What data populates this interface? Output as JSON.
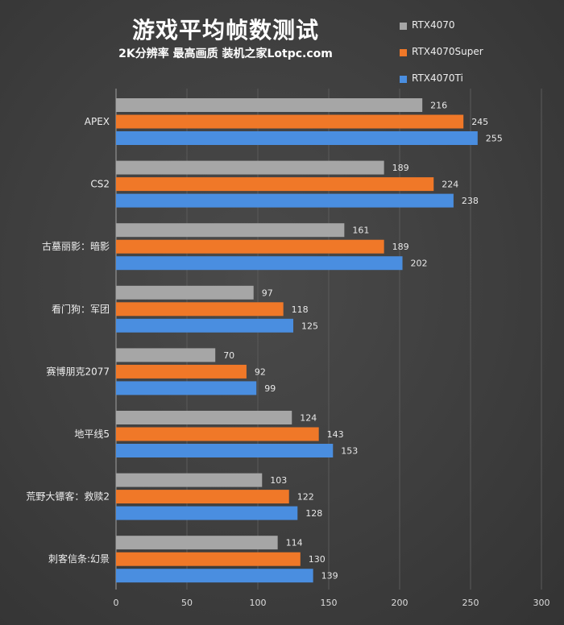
{
  "title": "游戏平均帧数测试",
  "subtitle": "2K分辨率  最高画质  装机之家Lotpc.com",
  "chart_data": {
    "type": "bar",
    "orientation": "horizontal",
    "categories": [
      "APEX",
      "CS2",
      "古墓丽影：暗影",
      "看门狗：军团",
      "赛博朋克2077",
      "地平线5",
      "荒野大镖客：救赎2",
      "刺客信条:幻景"
    ],
    "series": [
      {
        "name": "RTX4070",
        "color": "#a6a6a6",
        "values": [
          216,
          189,
          161,
          97,
          70,
          124,
          103,
          114
        ]
      },
      {
        "name": "RTX4070Super",
        "color": "#f07828",
        "values": [
          245,
          224,
          189,
          118,
          92,
          143,
          122,
          130
        ]
      },
      {
        "name": "RTX4070Ti",
        "color": "#4a8ee0",
        "values": [
          255,
          238,
          202,
          125,
          99,
          153,
          128,
          139
        ]
      }
    ],
    "xlim": [
      0,
      300
    ],
    "xticks": [
      0,
      50,
      100,
      150,
      200,
      250,
      300
    ],
    "grid": true,
    "legend_position": "top-right",
    "data_labels": true
  }
}
